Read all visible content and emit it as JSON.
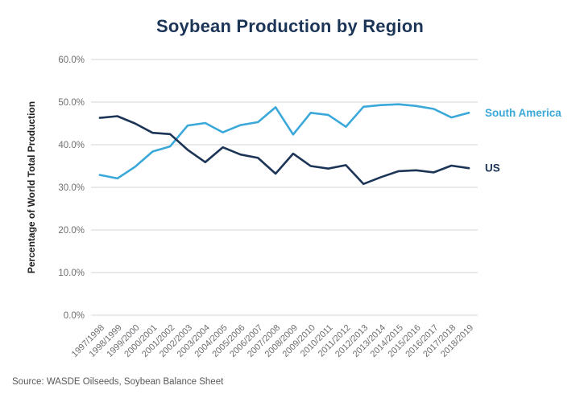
{
  "title": "Soybean Production by Region",
  "source": "Source: WASDE Oilseeds, Soybean Balance Sheet",
  "colors": {
    "title_text": "#1C3557",
    "gridline": "#DEDEDE",
    "tick_text": "#6D6E71",
    "axis_title_text": "#231F20",
    "source_text": "#58595B",
    "south_america": "#3BA8DA",
    "us": "#1C3557"
  },
  "chart_data": {
    "type": "line",
    "title": "Soybean Production by Region",
    "xlabel": "",
    "ylabel": "Percentage of World Total Production",
    "ylim": [
      0,
      60
    ],
    "ytick_step": 10,
    "ytick_labels": [
      "0.0%",
      "10.0%",
      "20.0%",
      "30.0%",
      "40.0%",
      "50.0%",
      "60.0%"
    ],
    "grid": "horizontal",
    "legend_position": "line-end-labels",
    "categories": [
      "1997/1998",
      "1998/1999",
      "1999/2000",
      "2000/2001",
      "2001/2002",
      "2002/2003",
      "2003/2004",
      "2004/2005",
      "2005/2006",
      "2006/2007",
      "2007/2008",
      "2008/2009",
      "2009/2010",
      "2010/2011",
      "2011/2012",
      "2012/2013",
      "2013/2014",
      "2014/2015",
      "2015/2016",
      "2016/2017",
      "2017/2018",
      "2018/2019"
    ],
    "series": [
      {
        "name": "South America",
        "color": "#3BA8DA",
        "values": [
          32.9,
          32.1,
          34.8,
          38.4,
          39.6,
          44.5,
          45.1,
          42.9,
          44.6,
          45.3,
          48.8,
          42.4,
          47.5,
          47.0,
          44.2,
          48.9,
          49.3,
          49.5,
          49.1,
          48.4,
          46.4,
          47.5
        ]
      },
      {
        "name": "US",
        "color": "#1C3557",
        "values": [
          46.3,
          46.7,
          45.0,
          42.8,
          42.5,
          38.8,
          35.9,
          39.4,
          37.7,
          36.9,
          33.2,
          37.9,
          35.0,
          34.4,
          35.2,
          30.8,
          32.4,
          33.8,
          34.0,
          33.5,
          35.1,
          34.5
        ]
      }
    ]
  }
}
